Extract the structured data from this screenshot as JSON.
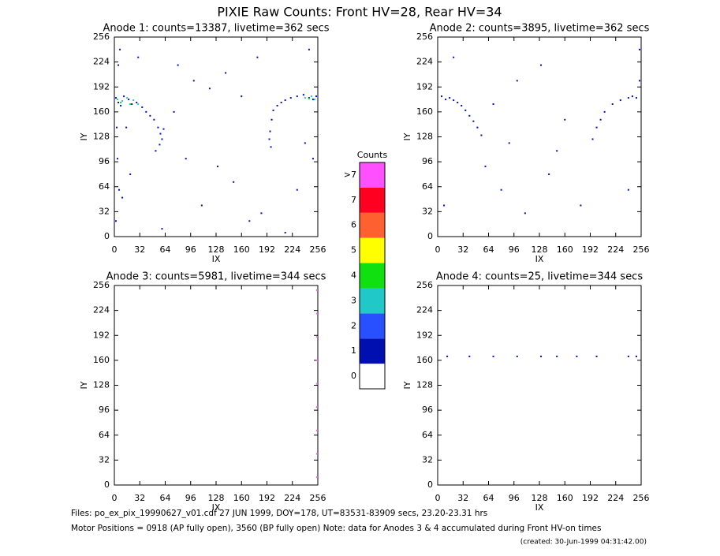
{
  "title": "PIXIE Raw Counts:  Front HV=28, Rear HV=34",
  "chart_data": [
    {
      "type": "scatter",
      "title": "Anode 1: counts=13387, livetime=362 secs",
      "xlabel": "IX",
      "ylabel": "IY",
      "xlim": [
        0,
        256
      ],
      "ylim": [
        0,
        256
      ],
      "xticks": [
        0,
        32,
        64,
        96,
        128,
        160,
        192,
        224,
        256
      ],
      "yticks": [
        0,
        32,
        64,
        96,
        128,
        160,
        192,
        224,
        256
      ],
      "series": [
        {
          "color": "#0010c8",
          "x": [
            2,
            5,
            8,
            12,
            18,
            22,
            28,
            35,
            40,
            45,
            50,
            55,
            58,
            60,
            62,
            57,
            52,
            3,
            4,
            6,
            2,
            5,
            7,
            200,
            205,
            210,
            215,
            222,
            230,
            238,
            245,
            250,
            254,
            198,
            196,
            195,
            197,
            30,
            80,
            100,
            120,
            140,
            160,
            180,
            230,
            20,
            90,
            110,
            150,
            170,
            240,
            60,
            75,
            130,
            185,
            215,
            10,
            250,
            15,
            245
          ],
          "y": [
            178,
            172,
            168,
            180,
            176,
            170,
            172,
            166,
            160,
            155,
            150,
            140,
            132,
            125,
            138,
            118,
            110,
            140,
            100,
            60,
            20,
            220,
            240,
            162,
            168,
            172,
            175,
            178,
            180,
            182,
            178,
            176,
            180,
            150,
            135,
            125,
            115,
            230,
            220,
            200,
            190,
            210,
            180,
            230,
            60,
            80,
            100,
            40,
            70,
            20,
            120,
            10,
            160,
            90,
            30,
            5,
            50,
            100,
            140,
            240
          ]
        },
        {
          "color": "#20c8c8",
          "x": [
            4,
            10,
            16,
            24,
            30,
            240,
            248,
            252
          ],
          "y": [
            176,
            174,
            178,
            175,
            170,
            178,
            180,
            176
          ]
        },
        {
          "color": "#10e010",
          "x": [
            8,
            20,
            245
          ],
          "y": [
            172,
            170,
            177
          ]
        }
      ]
    },
    {
      "type": "scatter",
      "title": "Anode 2: counts=3895, livetime=362 secs",
      "xlabel": "IX",
      "ylabel": "IY",
      "xlim": [
        0,
        256
      ],
      "ylim": [
        0,
        256
      ],
      "xticks": [
        0,
        32,
        64,
        96,
        128,
        160,
        192,
        224,
        256
      ],
      "yticks": [
        0,
        32,
        64,
        96,
        128,
        160,
        192,
        224,
        256
      ],
      "series": [
        {
          "color": "#0010c8",
          "x": [
            5,
            10,
            15,
            20,
            25,
            30,
            35,
            40,
            45,
            50,
            55,
            210,
            220,
            230,
            240,
            245,
            250,
            200,
            195,
            205,
            100,
            130,
            160,
            60,
            80,
            180,
            20,
            240,
            150,
            110,
            254,
            254,
            8,
            70,
            90,
            140
          ],
          "y": [
            180,
            176,
            178,
            175,
            172,
            168,
            162,
            155,
            148,
            140,
            130,
            160,
            170,
            175,
            178,
            180,
            178,
            140,
            125,
            150,
            200,
            220,
            150,
            90,
            60,
            40,
            230,
            60,
            110,
            30,
            240,
            200,
            40,
            170,
            120,
            80
          ]
        }
      ]
    },
    {
      "type": "scatter",
      "title": "Anode 3: counts=5981, livetime=344 secs",
      "xlabel": "IX",
      "ylabel": "IY",
      "xlim": [
        0,
        256
      ],
      "ylim": [
        0,
        256
      ],
      "xticks": [
        0,
        32,
        64,
        96,
        128,
        160,
        192,
        224,
        256
      ],
      "yticks": [
        0,
        32,
        64,
        96,
        128,
        160,
        192,
        224,
        256
      ],
      "series": [
        {
          "color": "#ff50ff",
          "x": [
            255,
            255,
            255,
            255,
            255,
            255,
            255,
            255,
            255
          ],
          "y": [
            10,
            40,
            70,
            100,
            130,
            160,
            190,
            220,
            250
          ]
        }
      ]
    },
    {
      "type": "scatter",
      "title": "Anode 4: counts=25, livetime=344 secs",
      "xlabel": "IX",
      "ylabel": "IY",
      "xlim": [
        0,
        256
      ],
      "ylim": [
        0,
        256
      ],
      "xticks": [
        0,
        32,
        64,
        96,
        128,
        160,
        192,
        224,
        256
      ],
      "yticks": [
        0,
        32,
        64,
        96,
        128,
        160,
        192,
        224,
        256
      ],
      "series": [
        {
          "color": "#0010c8",
          "x": [
            12,
            40,
            70,
            100,
            130,
            150,
            175,
            200,
            240,
            250
          ],
          "y": [
            165,
            165,
            165,
            165,
            165,
            165,
            165,
            165,
            165,
            165
          ]
        }
      ]
    }
  ],
  "colorbar": {
    "title": "Counts",
    "labels": [
      0,
      1,
      2,
      3,
      4,
      5,
      6,
      7,
      ">7"
    ],
    "colors": [
      "#ffffff",
      "#0010b0",
      "#2850ff",
      "#20c8c8",
      "#10e010",
      "#ffff00",
      "#ff6030",
      "#ff0020",
      "#ff50ff"
    ]
  },
  "footer": {
    "files": "Files: po_ex_pix_19990627_v01.cdf    27 JUN 1999, DOY=178, UT=83531-83909 secs, 23.20-23.31 hrs",
    "motor": "Motor Positions = 0918 (AP fully open), 3560 (BP fully open)    Note: data for Anodes 3 & 4 accumulated during Front HV-on times",
    "created": "(created: 30-Jun-1999 04:31:42.00)"
  }
}
